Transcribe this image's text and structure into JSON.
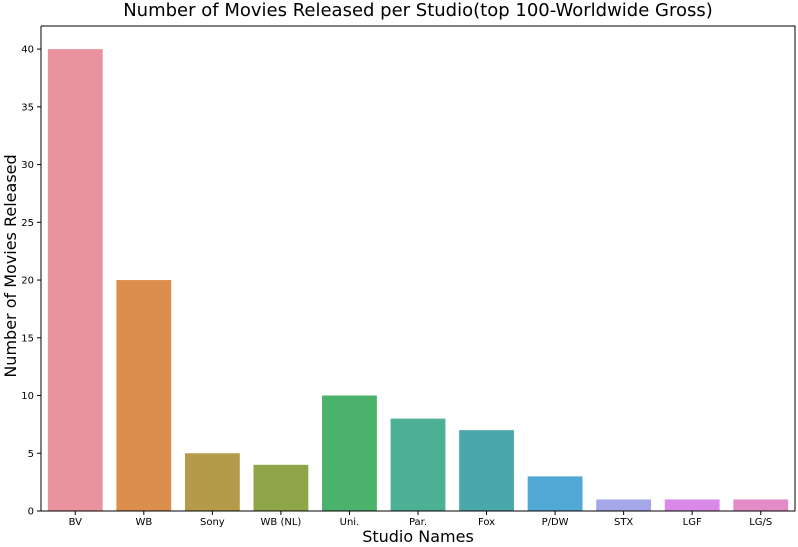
{
  "chart_data": {
    "type": "bar",
    "title": "Number of Movies Released per Studio(top 100-Worldwide Gross)",
    "xlabel": "Studio Names",
    "ylabel": "Number of Movies Released",
    "categories": [
      "BV",
      "WB",
      "Sony",
      "WB (NL)",
      "Uni.",
      "Par.",
      "Fox",
      "P/DW",
      "STX",
      "LGF",
      "LG/S"
    ],
    "values": [
      40,
      20,
      5,
      4,
      10,
      8,
      7,
      3,
      1,
      1,
      1
    ],
    "colors": [
      "#e8939f",
      "#dc8f4d",
      "#b39b4a",
      "#8ea54a",
      "#4bb26b",
      "#4cb095",
      "#4aa8aa",
      "#51a8d4",
      "#a5a8e8",
      "#d98ae8",
      "#e48cc8"
    ],
    "yticks": [
      0,
      5,
      10,
      15,
      20,
      25,
      30,
      35,
      40
    ],
    "ylim": [
      0,
      42
    ],
    "grid": false,
    "legend": "none"
  }
}
